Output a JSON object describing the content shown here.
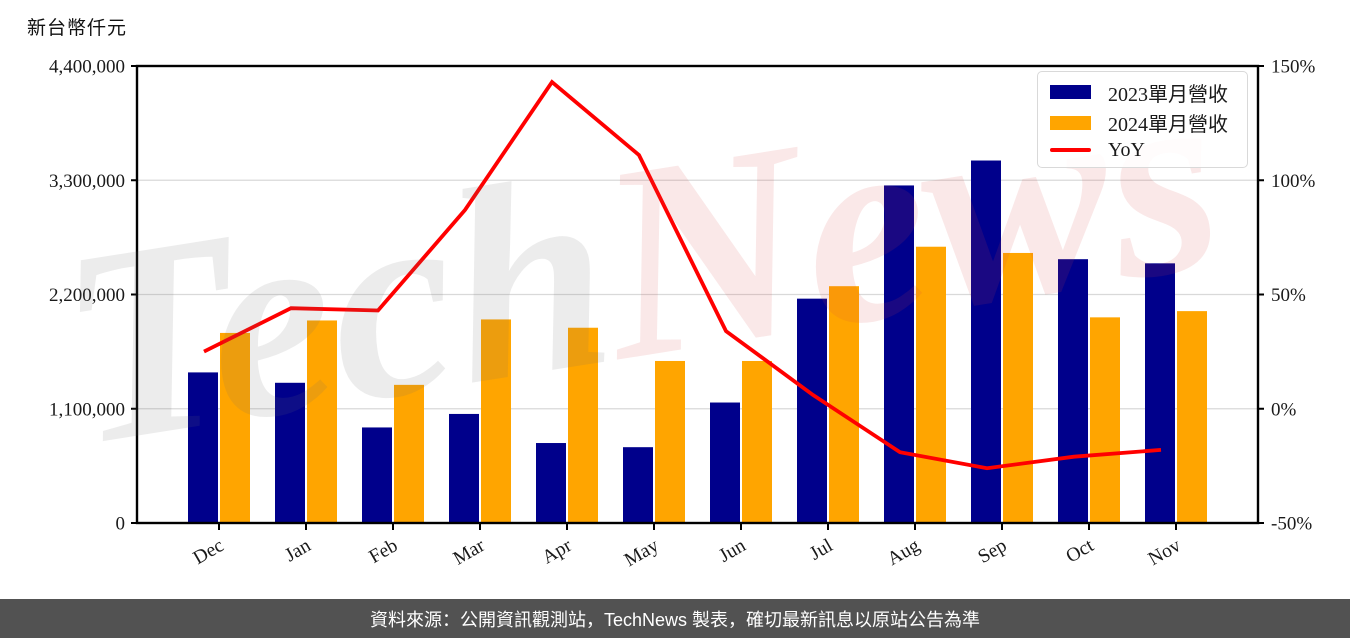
{
  "title_unit": "新台幣仟元",
  "watermark": {
    "gray_text": "Tech",
    "red_text": "News"
  },
  "legend": {
    "items": [
      {
        "label": "2023單月營收",
        "color": "#00008B",
        "swatch": "box"
      },
      {
        "label": "2024單月營收",
        "color": "#FFA500",
        "swatch": "box"
      },
      {
        "label": "YoY",
        "color": "#FF0000",
        "swatch": "line"
      }
    ]
  },
  "footer": {
    "text": "資料來源：公開資訊觀測站，TechNews 製表，確切最新訊息以原站公告為準",
    "background": "#525252",
    "text_color": "#FFFFFF"
  },
  "colors": {
    "bar_2023": "#00008B",
    "bar_2024": "#FFA500",
    "yoy_line": "#FF0000",
    "grid": "#D9D9D9",
    "axis": "#000000",
    "tick_label": "#1A1A1A"
  },
  "chart_data": {
    "type": "bar",
    "categories": [
      "Dec",
      "Jan",
      "Feb",
      "Mar",
      "Apr",
      "May",
      "Jun",
      "Jul",
      "Aug",
      "Sep",
      "Oct",
      "Nov"
    ],
    "series": [
      {
        "name": "2023單月營收",
        "type": "bar",
        "axis": "left",
        "color": "#00008B",
        "values": [
          1450000,
          1350000,
          920000,
          1050000,
          770000,
          730000,
          1160000,
          2160000,
          3250000,
          3490000,
          2540000,
          2500000
        ]
      },
      {
        "name": "2024單月營收",
        "type": "bar",
        "axis": "left",
        "color": "#FFA500",
        "values": [
          1830000,
          1950000,
          1330000,
          1960000,
          1880000,
          1560000,
          1560000,
          2280000,
          2660000,
          2600000,
          1980000,
          2040000
        ]
      },
      {
        "name": "YoY",
        "type": "line",
        "axis": "right",
        "color": "#FF0000",
        "values_percent": [
          25,
          44,
          43,
          87,
          143,
          111,
          34,
          6,
          -19,
          -26,
          -21,
          -18
        ]
      }
    ],
    "left_axis": {
      "title": "新台幣仟元",
      "min": 0,
      "max": 4400000,
      "ticks": [
        0,
        1100000,
        2200000,
        3300000,
        4400000
      ],
      "tick_labels": [
        "0",
        "1,100,000",
        "2,200,000",
        "3,300,000",
        "4,400,000"
      ]
    },
    "right_axis": {
      "min": -50,
      "max": 150,
      "ticks": [
        -50,
        0,
        50,
        100,
        150
      ],
      "tick_labels": [
        "-50%",
        "0%",
        "50%",
        "100%",
        "150%"
      ]
    },
    "grid": true,
    "legend_position": "top-right"
  }
}
